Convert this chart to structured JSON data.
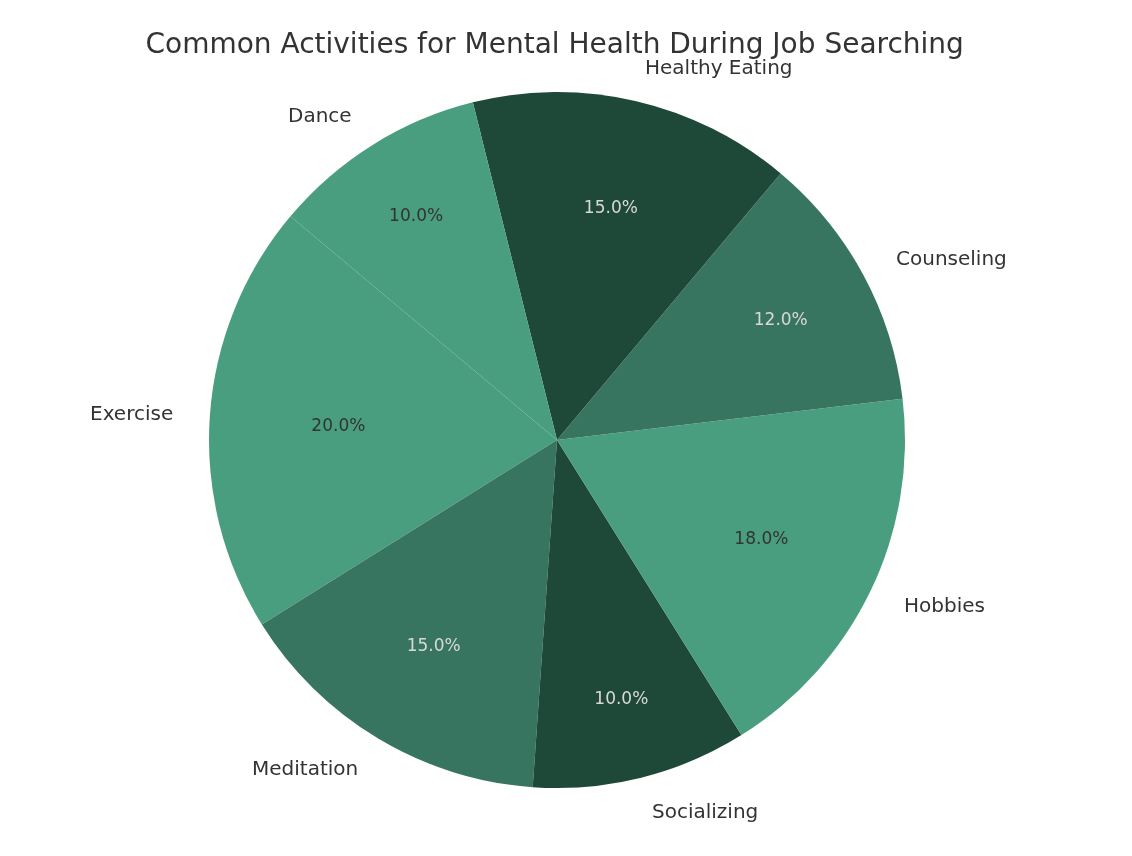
{
  "chart_data": {
    "type": "pie",
    "title": "Common Activities for Mental Health During Job Searching",
    "categories": [
      "Exercise",
      "Meditation",
      "Socializing",
      "Hobbies",
      "Counseling",
      "Healthy Eating",
      "Dance"
    ],
    "values": [
      20,
      15,
      10,
      18,
      12,
      15,
      10
    ],
    "colors": [
      "#4a9e80",
      "#377560",
      "#1e4838",
      "#4a9e80",
      "#377560",
      "#1e4838",
      "#4a9e80"
    ],
    "value_labels": [
      "20.0%",
      "15.0%",
      "10.0%",
      "18.0%",
      "12.0%",
      "15.0%",
      "10.0%"
    ]
  }
}
